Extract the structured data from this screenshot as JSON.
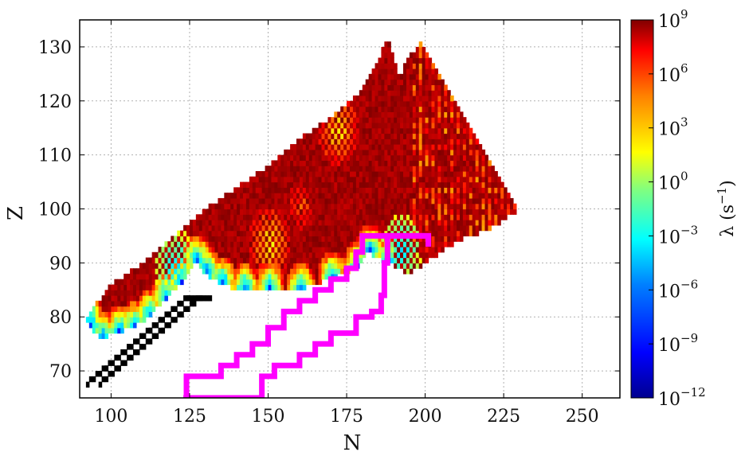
{
  "chart_data": {
    "type": "heatmap",
    "xlabel": "N",
    "ylabel": "Z",
    "xlim": [
      90,
      262
    ],
    "ylim": [
      65,
      135
    ],
    "x_ticks": [
      {
        "value": 100,
        "label": "100"
      },
      {
        "value": 125,
        "label": "125"
      },
      {
        "value": 150,
        "label": "150"
      },
      {
        "value": 175,
        "label": "175"
      },
      {
        "value": 200,
        "label": "200"
      },
      {
        "value": 225,
        "label": "225"
      },
      {
        "value": 250,
        "label": "250"
      }
    ],
    "y_ticks": [
      {
        "value": 70,
        "label": "70"
      },
      {
        "value": 80,
        "label": "80"
      },
      {
        "value": 90,
        "label": "90"
      },
      {
        "value": 100,
        "label": "100"
      },
      {
        "value": 110,
        "label": "110"
      },
      {
        "value": 120,
        "label": "120"
      },
      {
        "value": 130,
        "label": "130"
      }
    ],
    "grid": true,
    "grid_style": "dotted",
    "colorbar": {
      "label_main": "λ (s",
      "label_exp": "−1",
      "label_close": ")",
      "scale": "log",
      "range_exp": [
        -12,
        9
      ],
      "colormap": "jet",
      "ticks": [
        {
          "exp": 9,
          "base": "10",
          "exp_label": "9"
        },
        {
          "exp": 6,
          "base": "10",
          "exp_label": "6"
        },
        {
          "exp": 3,
          "base": "10",
          "exp_label": "3"
        },
        {
          "exp": 0,
          "base": "10",
          "exp_label": "0"
        },
        {
          "exp": -3,
          "base": "10",
          "exp_label": "−3"
        },
        {
          "exp": -6,
          "base": "10",
          "exp_label": "−6"
        },
        {
          "exp": -9,
          "base": "10",
          "exp_label": "−9"
        },
        {
          "exp": -12,
          "base": "10",
          "exp_label": "−12"
        }
      ]
    },
    "region_description_values": {
      "rate_exponent_dominant": 9,
      "upper_boundary": [
        [
          92,
          80
        ],
        [
          100,
          86
        ],
        [
          110,
          90
        ],
        [
          120,
          95
        ],
        [
          130,
          100
        ],
        [
          140,
          104
        ],
        [
          150,
          108
        ],
        [
          160,
          113
        ],
        [
          170,
          117
        ],
        [
          180,
          122
        ],
        [
          185,
          127
        ],
        [
          188,
          132
        ],
        [
          190,
          128
        ],
        [
          192,
          124
        ],
        [
          194,
          128
        ],
        [
          196,
          129
        ],
        [
          199,
          131
        ],
        [
          205,
          124
        ],
        [
          212,
          118
        ],
        [
          218,
          112
        ],
        [
          225,
          104
        ],
        [
          230,
          100
        ]
      ],
      "lower_boundary": [
        [
          230,
          100
        ],
        [
          225,
          98
        ],
        [
          220,
          96
        ],
        [
          210,
          94
        ],
        [
          200,
          90
        ],
        [
          195,
          88
        ],
        [
          188,
          90
        ],
        [
          182,
          92
        ],
        [
          178,
          89
        ],
        [
          170,
          87
        ],
        [
          160,
          85
        ],
        [
          150,
          85
        ],
        [
          142,
          85
        ],
        [
          135,
          86
        ],
        [
          130,
          88
        ],
        [
          127,
          90
        ],
        [
          122,
          86
        ],
        [
          117,
          83
        ],
        [
          112,
          80
        ],
        [
          107,
          78
        ],
        [
          102,
          77
        ],
        [
          97,
          76
        ],
        [
          93,
          78
        ],
        [
          92,
          80
        ]
      ],
      "stable_belt": [
        [
          92,
          67
        ],
        [
          98,
          70
        ],
        [
          105,
          74
        ],
        [
          112,
          77
        ],
        [
          118,
          80
        ],
        [
          124,
          83
        ],
        [
          127,
          83
        ]
      ],
      "bright_spots": [
        {
          "n": 172,
          "z": 114,
          "exp": 0
        },
        {
          "n": 150,
          "z": 93,
          "exp": 0
        },
        {
          "n": 160,
          "z": 100,
          "exp": 3
        },
        {
          "n": 192,
          "z": 92,
          "exp": -6
        },
        {
          "n": 120,
          "z": 89,
          "exp": -6
        }
      ]
    },
    "boundary_lines": [
      {
        "name": "",
        "color": "#ff00ff",
        "points": [
          [
            123,
            65
          ],
          [
            124,
            69
          ],
          [
            133,
            69
          ],
          [
            135,
            71
          ],
          [
            140,
            73
          ],
          [
            145,
            75
          ],
          [
            150,
            78
          ],
          [
            155,
            81
          ],
          [
            160,
            83
          ],
          [
            165,
            85
          ],
          [
            170,
            87
          ],
          [
            175,
            89
          ],
          [
            178,
            92
          ],
          [
            180,
            95
          ],
          [
            190,
            95
          ],
          [
            200,
            95
          ]
        ]
      },
      {
        "name": "",
        "color": "#ff00ff",
        "points": [
          [
            124,
            65
          ],
          [
            146,
            65
          ],
          [
            148,
            69
          ],
          [
            152,
            71
          ],
          [
            160,
            73
          ],
          [
            165,
            75
          ],
          [
            170,
            77
          ],
          [
            178,
            80
          ],
          [
            183,
            81
          ],
          [
            186,
            84
          ],
          [
            187,
            90
          ],
          [
            188,
            95
          ],
          [
            192,
            95
          ],
          [
            200,
            95
          ],
          [
            201,
            93
          ]
        ]
      }
    ]
  }
}
